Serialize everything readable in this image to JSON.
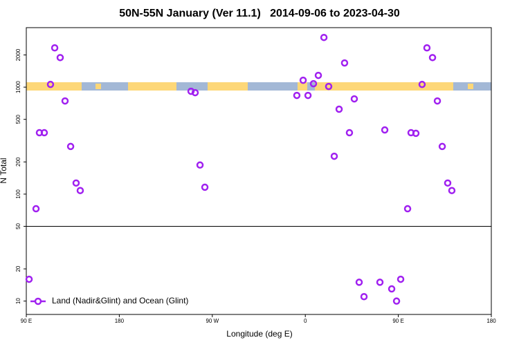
{
  "chart_data": {
    "type": "scatter",
    "title": "50N-55N January (Ver 11.1)   2014-09-06 to 2023-04-30",
    "x_label": "Longitude (deg E)",
    "y_label": "N Total",
    "xlim": [
      90,
      540
    ],
    "xticks": [
      {
        "value": 90,
        "label": "90 E"
      },
      180,
      {
        "value": 270,
        "label": "90 W"
      },
      {
        "value": 360,
        "label": "0"
      },
      {
        "value": 450,
        "label": "90 E"
      },
      {
        "value": 540,
        "label": "180"
      }
    ],
    "ylim": [
      7.5,
      3600
    ],
    "log_y": true,
    "yticks": [
      10,
      20,
      50,
      100,
      200,
      500,
      1000,
      2000
    ],
    "hline": 50,
    "legend_position": "bottom-left",
    "series": [
      {
        "name": "Land (Nadir&Glint) and Ocean (Glint)",
        "color": "#a020f0",
        "x": [
          92.7,
          99.4,
          102.7,
          107.4,
          113.4,
          117.5,
          122.8,
          127.5,
          132.9,
          138.2,
          142.2,
          249.4,
          253.4,
          258.1,
          262.8,
          351.8,
          357.9,
          362.6,
          367.9,
          372.6,
          378.0,
          382.6,
          388.0,
          392.7,
          398.0,
          402.7,
          407.4,
          412.1,
          416.8,
          432.2,
          436.9,
          443.6,
          448.3,
          452.3,
          459.0,
          462.3,
          467.0,
          473.0,
          477.7,
          483.1,
          487.8,
          492.5,
          497.8,
          501.8
        ],
        "values": [
          16,
          73,
          375,
          375,
          1060,
          2330,
          1890,
          743,
          279,
          127,
          108,
          915,
          888,
          187,
          116,
          837,
          1160,
          837,
          1077,
          1288,
          2915,
          1015,
          226,
          622,
          1683,
          375,
          777,
          15,
          11,
          15,
          398,
          13,
          10,
          16,
          73,
          375,
          370,
          1060,
          2330,
          1890,
          743,
          279,
          127,
          108
        ]
      }
    ]
  }
}
